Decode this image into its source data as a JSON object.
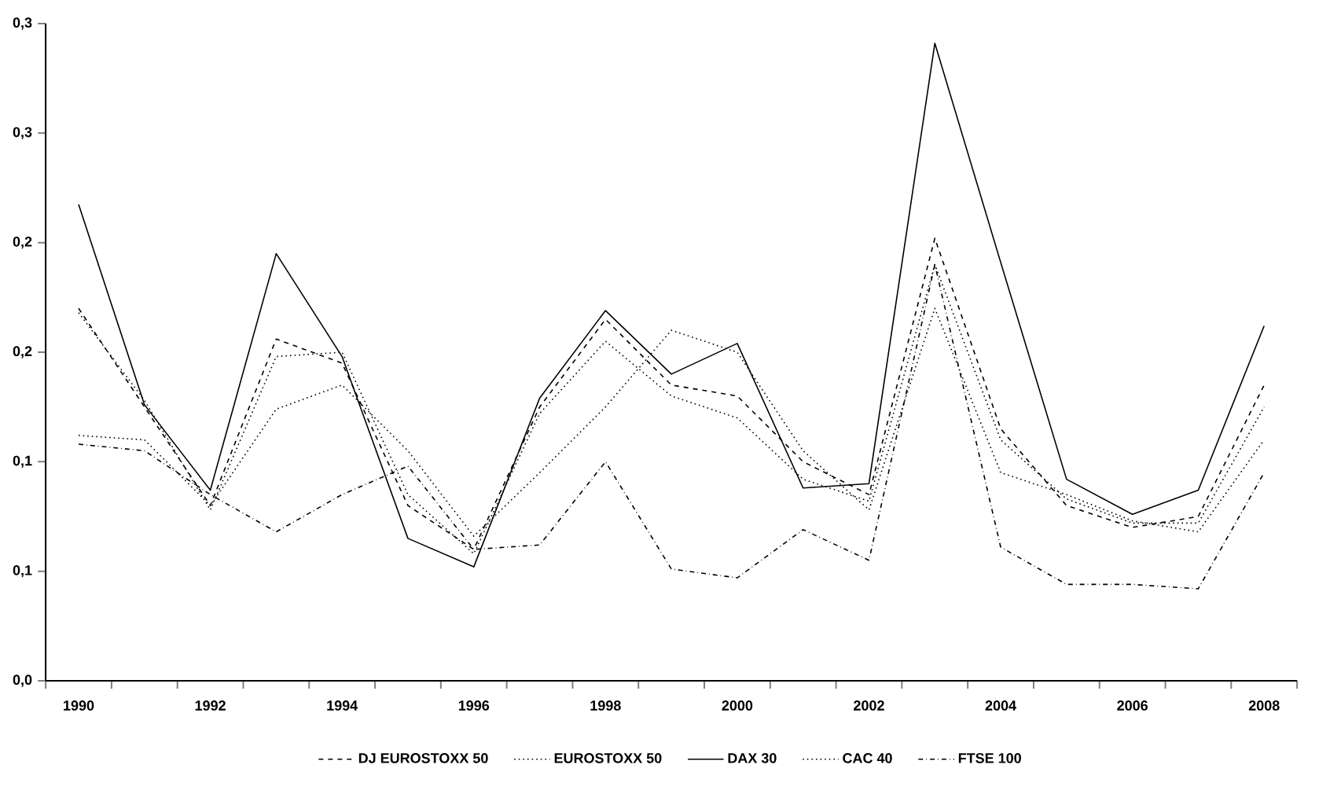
{
  "chart_data": {
    "type": "line",
    "categories": [
      "1990",
      null,
      "1992",
      null,
      "1994",
      null,
      "1996",
      null,
      "1998",
      null,
      "2000",
      null,
      "2002",
      null,
      "2004",
      null,
      "2006",
      null,
      "2008"
    ],
    "ylim": [
      0,
      0.3
    ],
    "yticks": [
      {
        "value": 0,
        "label": "0,0"
      },
      {
        "value": 0.05,
        "label": "0,1"
      },
      {
        "value": 0.1,
        "label": "0,1"
      },
      {
        "value": 0.15,
        "label": "0,2"
      },
      {
        "value": 0.2,
        "label": "0,2"
      },
      {
        "value": 0.25,
        "label": "0,3"
      },
      {
        "value": 0.3,
        "label": "0,3"
      }
    ],
    "legend": "bottom",
    "series": [
      {
        "name": "DJ EUROSTOXX 50",
        "color": "#000000",
        "line_style": "dashed",
        "values": [
          0.17,
          0.125,
          0.08,
          0.156,
          0.145,
          0.08,
          0.06,
          0.125,
          0.165,
          0.135,
          0.13,
          0.1,
          0.085,
          0.202,
          0.115,
          0.08,
          0.07,
          0.075,
          0.135
        ]
      },
      {
        "name": "EUROSTOXX 50",
        "color": "#000000",
        "line_style": "dotted",
        "values": [
          0.168,
          0.128,
          0.078,
          0.148,
          0.15,
          0.085,
          0.058,
          0.122,
          0.155,
          0.13,
          0.12,
          0.092,
          0.082,
          0.19,
          0.11,
          0.083,
          0.072,
          0.072,
          0.125
        ]
      },
      {
        "name": "DAX 30",
        "color": "#000000",
        "line_style": "solid",
        "values": [
          0.2175,
          0.126,
          0.087,
          0.195,
          0.148,
          0.065,
          0.052,
          0.129,
          0.169,
          0.14,
          0.154,
          0.088,
          0.09,
          0.291,
          0.191,
          0.092,
          0.076,
          0.087,
          0.162
        ]
      },
      {
        "name": "CAC 40",
        "color": "#000000",
        "line_style": "dotted",
        "values": [
          0.112,
          0.11,
          0.08,
          0.124,
          0.135,
          0.105,
          0.066,
          0.095,
          0.125,
          0.16,
          0.15,
          0.105,
          0.078,
          0.17,
          0.095,
          0.085,
          0.073,
          0.068,
          0.11
        ]
      },
      {
        "name": "FTSE 100",
        "color": "#000000",
        "line_style": "dashdot",
        "values": [
          0.108,
          0.105,
          0.085,
          0.068,
          0.085,
          0.098,
          0.06,
          0.062,
          0.1,
          0.051,
          0.047,
          0.069,
          0.055,
          0.19,
          0.061,
          0.044,
          0.044,
          0.042,
          0.095
        ]
      }
    ]
  }
}
